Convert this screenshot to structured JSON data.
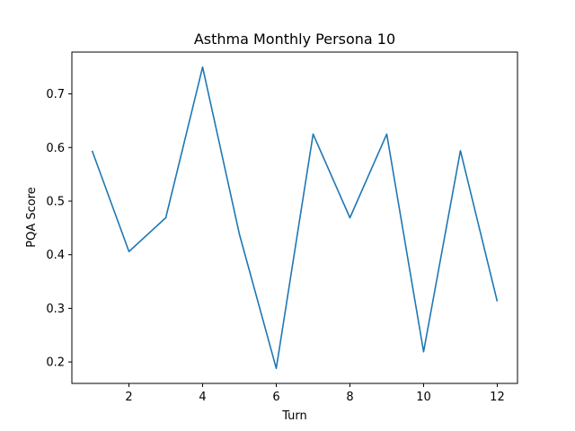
{
  "chart_data": {
    "type": "line",
    "title": "Asthma Monthly Persona 10",
    "xlabel": "Turn",
    "ylabel": "PQA Score",
    "x": [
      1,
      2,
      3,
      4,
      5,
      6,
      7,
      8,
      9,
      10,
      11,
      12
    ],
    "series": [
      {
        "values": [
          0.594,
          0.406,
          0.469,
          0.75,
          0.438,
          0.188,
          0.625,
          0.469,
          0.625,
          0.219,
          0.594,
          0.313
        ],
        "color": "#1f77b4"
      }
    ],
    "xlim": [
      0.45,
      12.55
    ],
    "ylim": [
      0.16,
      0.778
    ],
    "xticks": [
      2,
      4,
      6,
      8,
      10,
      12
    ],
    "yticks": [
      0.2,
      0.3,
      0.4,
      0.5,
      0.6,
      0.7
    ],
    "xtick_labels": [
      "2",
      "4",
      "6",
      "8",
      "10",
      "12"
    ],
    "ytick_labels": [
      "0.2",
      "0.3",
      "0.4",
      "0.5",
      "0.6",
      "0.7"
    ],
    "grid": false,
    "legend": "none"
  }
}
